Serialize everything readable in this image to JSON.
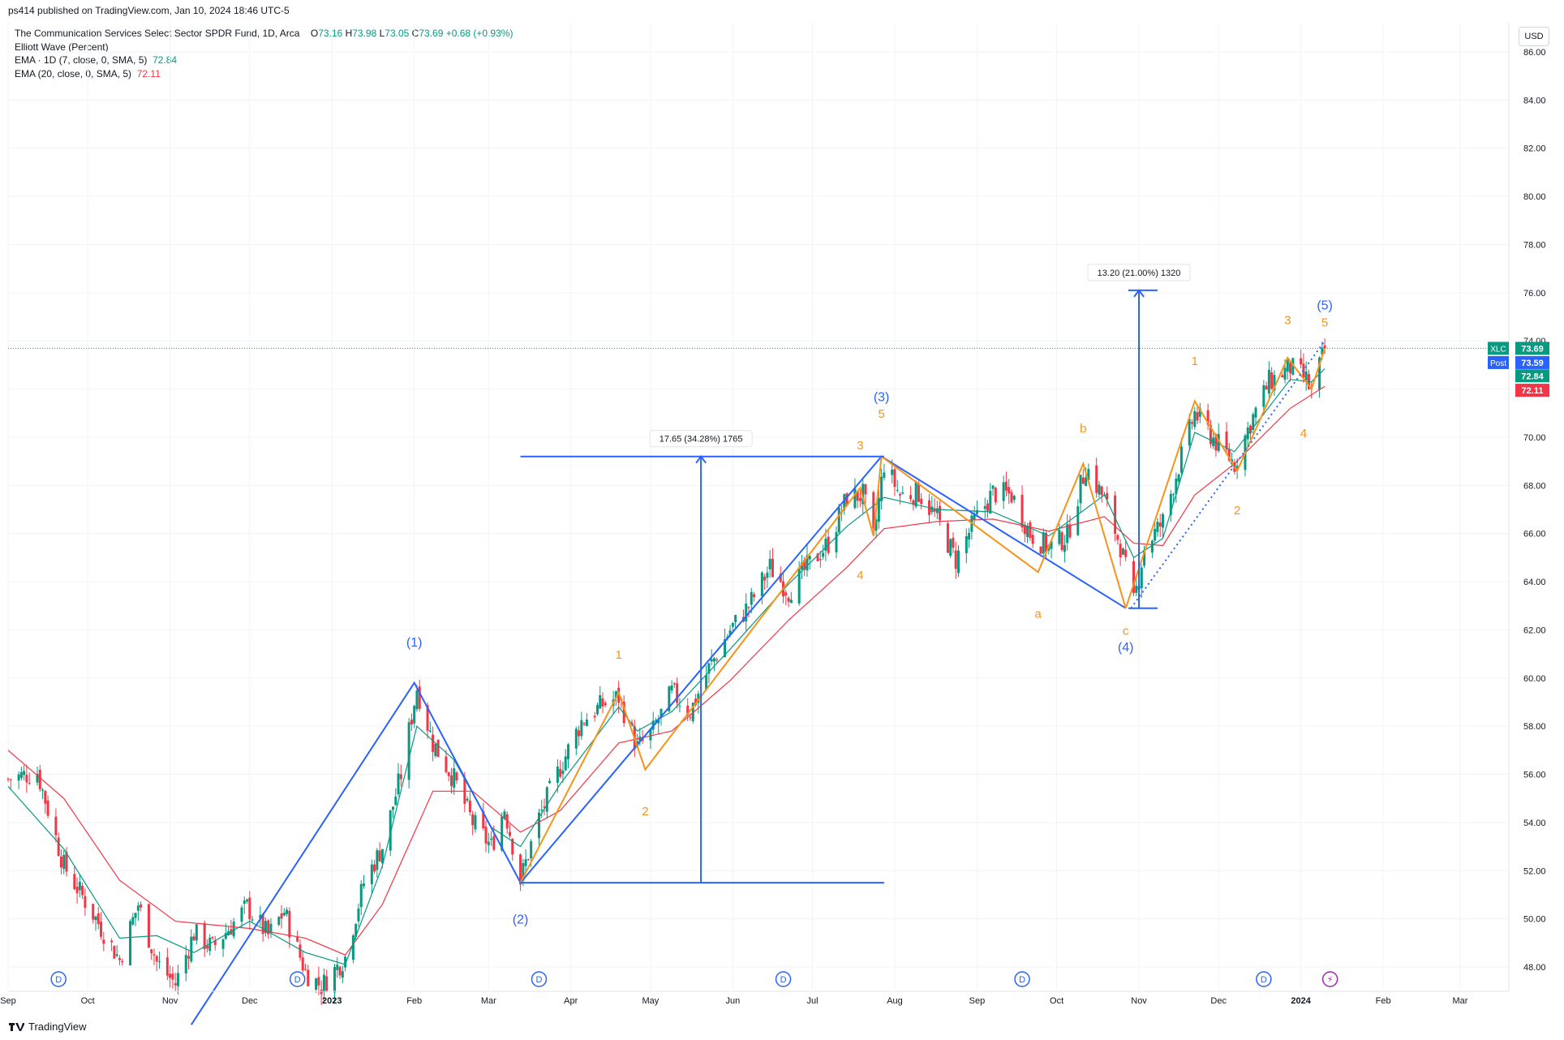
{
  "header": {
    "publisher": "ps414 published on TradingView.com, Jan 10, 2024 18:46 UTC-5"
  },
  "legend": {
    "symbol_line": "The Communication Services Select Sector SPDR Fund, 1D, Arca",
    "o_label": "O",
    "o": "73.16",
    "h_label": "H",
    "h": "73.98",
    "l_label": "L",
    "l": "73.05",
    "c_label": "C",
    "c": "73.69",
    "change": "+0.68 (+0.93%)",
    "indicator1": "Elliott Wave (Percent)",
    "ema_fast_label": "EMA · 1D (7, close, 0, SMA, 5)",
    "ema_fast_value": "72.84",
    "ema_slow_label": "EMA (20, close, 0, SMA, 5)",
    "ema_slow_value": "72.11"
  },
  "currency": "USD",
  "footer": {
    "brand": "TradingView"
  },
  "colors": {
    "up": "#089981",
    "down": "#f23645",
    "ema_fast": "#089981",
    "ema_slow": "#f23645",
    "primary_wave": "#2962ff",
    "minor_wave": "#f7931a",
    "grid": "#f0f3fa"
  },
  "chart_data": {
    "type": "candlestick",
    "title": "The Communication Services Select Sector SPDR Fund, 1D, Arca",
    "ylim": [
      46.5,
      86.5
    ],
    "y_ticks": [
      "48.00",
      "50.00",
      "52.00",
      "54.00",
      "56.00",
      "58.00",
      "60.00",
      "62.00",
      "64.00",
      "66.00",
      "68.00",
      "70.00",
      "72.00",
      "74.00",
      "76.00",
      "78.00",
      "80.00",
      "82.00",
      "84.00",
      "86.00"
    ],
    "x_ticks": [
      "Sep",
      "Oct",
      "Nov",
      "Dec",
      "2023",
      "Feb",
      "Mar",
      "Apr",
      "May",
      "Jun",
      "Jul",
      "Aug",
      "Sep",
      "Oct",
      "Nov",
      "Dec",
      "2024",
      "Feb",
      "Mar"
    ],
    "x_tick_dates": [
      "2022-09-01",
      "2022-10-01",
      "2022-11-01",
      "2022-12-01",
      "2023-01-01",
      "2023-02-01",
      "2023-03-01",
      "2023-04-01",
      "2023-05-01",
      "2023-06-01",
      "2023-07-01",
      "2023-08-01",
      "2023-09-01",
      "2023-10-01",
      "2023-11-01",
      "2023-12-01",
      "2024-01-01",
      "2024-02-01",
      "2024-03-01"
    ],
    "price_path": [
      [
        "2022-09-01",
        55.8
      ],
      [
        "2022-09-12",
        56.1
      ],
      [
        "2022-09-22",
        52.2
      ],
      [
        "2022-10-03",
        50.2
      ],
      [
        "2022-10-13",
        48.3
      ],
      [
        "2022-10-20",
        50.6
      ],
      [
        "2022-10-27",
        48.2
      ],
      [
        "2022-11-03",
        47.3
      ],
      [
        "2022-11-10",
        49.4
      ],
      [
        "2022-11-17",
        48.8
      ],
      [
        "2022-11-30",
        50.5
      ],
      [
        "2022-12-08",
        49.3
      ],
      [
        "2022-12-14",
        50.3
      ],
      [
        "2022-12-22",
        47.8
      ],
      [
        "2022-12-28",
        47.2
      ],
      [
        "2023-01-06",
        48.4
      ],
      [
        "2023-01-13",
        51.5
      ],
      [
        "2023-01-20",
        53.0
      ],
      [
        "2023-01-27",
        56.0
      ],
      [
        "2023-02-02",
        59.6
      ],
      [
        "2023-02-08",
        57.3
      ],
      [
        "2023-02-16",
        55.8
      ],
      [
        "2023-02-23",
        54.0
      ],
      [
        "2023-03-02",
        53.0
      ],
      [
        "2023-03-07",
        54.6
      ],
      [
        "2023-03-13",
        51.6
      ],
      [
        "2023-03-20",
        54.2
      ],
      [
        "2023-03-28",
        56.3
      ],
      [
        "2023-04-05",
        58.2
      ],
      [
        "2023-04-13",
        58.9
      ],
      [
        "2023-04-19",
        59.2
      ],
      [
        "2023-04-26",
        57.1
      ],
      [
        "2023-05-02",
        57.8
      ],
      [
        "2023-05-09",
        59.4
      ],
      [
        "2023-05-16",
        58.6
      ],
      [
        "2023-05-23",
        60.4
      ],
      [
        "2023-05-31",
        62.0
      ],
      [
        "2023-06-07",
        63.0
      ],
      [
        "2023-06-15",
        64.6
      ],
      [
        "2023-06-22",
        63.6
      ],
      [
        "2023-06-29",
        64.6
      ],
      [
        "2023-07-07",
        65.6
      ],
      [
        "2023-07-14",
        67.5
      ],
      [
        "2023-07-20",
        67.6
      ],
      [
        "2023-07-24",
        65.8
      ],
      [
        "2023-07-28",
        68.9
      ],
      [
        "2023-08-03",
        67.6
      ],
      [
        "2023-08-10",
        67.7
      ],
      [
        "2023-08-17",
        66.6
      ],
      [
        "2023-08-24",
        64.9
      ],
      [
        "2023-08-31",
        66.5
      ],
      [
        "2023-09-07",
        67.7
      ],
      [
        "2023-09-14",
        67.6
      ],
      [
        "2023-09-21",
        66.0
      ],
      [
        "2023-09-28",
        65.4
      ],
      [
        "2023-10-05",
        65.9
      ],
      [
        "2023-10-12",
        68.8
      ],
      [
        "2023-10-19",
        67.4
      ],
      [
        "2023-10-25",
        65.5
      ],
      [
        "2023-10-30",
        63.1
      ],
      [
        "2023-11-03",
        65.4
      ],
      [
        "2023-11-10",
        66.5
      ],
      [
        "2023-11-17",
        69.2
      ],
      [
        "2023-11-22",
        71.0
      ],
      [
        "2023-11-30",
        69.8
      ],
      [
        "2023-12-07",
        68.9
      ],
      [
        "2023-12-13",
        70.6
      ],
      [
        "2023-12-20",
        72.3
      ],
      [
        "2023-12-28",
        72.9
      ],
      [
        "2024-01-03",
        72.4
      ],
      [
        "2024-01-05",
        71.8
      ],
      [
        "2024-01-10",
        73.69
      ]
    ],
    "ema_fast_path": [
      [
        "2022-09-01",
        55.5
      ],
      [
        "2022-09-22",
        52.9
      ],
      [
        "2022-10-13",
        49.2
      ],
      [
        "2022-10-27",
        49.3
      ],
      [
        "2022-11-10",
        48.6
      ],
      [
        "2022-12-01",
        49.9
      ],
      [
        "2022-12-22",
        48.6
      ],
      [
        "2023-01-06",
        48.1
      ],
      [
        "2023-01-20",
        52.2
      ],
      [
        "2023-02-02",
        58.0
      ],
      [
        "2023-02-16",
        56.6
      ],
      [
        "2023-03-02",
        53.8
      ],
      [
        "2023-03-13",
        53.0
      ],
      [
        "2023-03-28",
        55.6
      ],
      [
        "2023-04-19",
        58.8
      ],
      [
        "2023-04-26",
        57.8
      ],
      [
        "2023-05-09",
        58.6
      ],
      [
        "2023-05-31",
        61.2
      ],
      [
        "2023-06-22",
        63.9
      ],
      [
        "2023-07-14",
        66.3
      ],
      [
        "2023-07-28",
        67.5
      ],
      [
        "2023-08-17",
        67.0
      ],
      [
        "2023-09-07",
        66.9
      ],
      [
        "2023-09-28",
        65.9
      ],
      [
        "2023-10-19",
        67.6
      ],
      [
        "2023-10-30",
        65.0
      ],
      [
        "2023-11-10",
        65.8
      ],
      [
        "2023-11-22",
        70.2
      ],
      [
        "2023-12-07",
        69.4
      ],
      [
        "2023-12-28",
        72.4
      ],
      [
        "2024-01-05",
        72.3
      ],
      [
        "2024-01-10",
        72.84
      ]
    ],
    "ema_slow_path": [
      [
        "2022-09-01",
        57.0
      ],
      [
        "2022-09-22",
        55.0
      ],
      [
        "2022-10-13",
        51.6
      ],
      [
        "2022-11-03",
        49.9
      ],
      [
        "2022-12-01",
        49.6
      ],
      [
        "2022-12-22",
        49.2
      ],
      [
        "2023-01-06",
        48.5
      ],
      [
        "2023-01-20",
        50.6
      ],
      [
        "2023-02-08",
        55.3
      ],
      [
        "2023-02-23",
        55.3
      ],
      [
        "2023-03-13",
        53.6
      ],
      [
        "2023-03-28",
        54.5
      ],
      [
        "2023-04-19",
        57.3
      ],
      [
        "2023-05-09",
        57.8
      ],
      [
        "2023-05-31",
        59.9
      ],
      [
        "2023-06-22",
        62.4
      ],
      [
        "2023-07-14",
        64.6
      ],
      [
        "2023-07-28",
        66.2
      ],
      [
        "2023-08-17",
        66.5
      ],
      [
        "2023-09-07",
        66.6
      ],
      [
        "2023-09-28",
        66.1
      ],
      [
        "2023-10-19",
        66.7
      ],
      [
        "2023-10-30",
        65.6
      ],
      [
        "2023-11-10",
        65.5
      ],
      [
        "2023-11-22",
        67.6
      ],
      [
        "2023-12-07",
        68.9
      ],
      [
        "2023-12-28",
        71.2
      ],
      [
        "2024-01-10",
        72.11
      ]
    ],
    "last_values": [
      {
        "tag": "XLC",
        "value": "73.69",
        "color": "#089981"
      },
      {
        "tag": "Post",
        "value": "73.59",
        "color": "#2962ff"
      },
      {
        "tag": "",
        "value": "72.84",
        "color": "#089981"
      },
      {
        "tag": "",
        "value": "72.11",
        "color": "#f23645"
      }
    ],
    "last_price": 73.69,
    "primary_wave": {
      "points": [
        [
          "2022-11-09",
          45.6
        ],
        [
          "2023-02-01",
          59.8
        ],
        [
          "2023-03-13",
          51.5
        ],
        [
          "2023-07-27",
          69.2
        ],
        [
          "2023-10-27",
          62.9
        ]
      ],
      "labels": [
        {
          "text": "(1)",
          "date": "2023-02-01",
          "price": 61.3
        },
        {
          "text": "(2)",
          "date": "2023-03-13",
          "price": 49.8
        },
        {
          "text": "(3)",
          "date": "2023-07-27",
          "price": 71.5
        },
        {
          "text": "(4)",
          "date": "2023-10-27",
          "price": 61.1
        },
        {
          "text": "(5)",
          "date": "2024-01-10",
          "price": 75.3
        }
      ]
    },
    "minor_wave_1": {
      "points": [
        [
          "2023-03-13",
          51.5
        ],
        [
          "2023-04-19",
          59.4
        ],
        [
          "2023-04-29",
          56.2
        ],
        [
          "2023-07-19",
          67.9
        ],
        [
          "2023-07-24",
          65.9
        ],
        [
          "2023-07-27",
          69.2
        ]
      ],
      "labels": [
        {
          "text": "1",
          "date": "2023-04-19",
          "price": 60.8
        },
        {
          "text": "2",
          "date": "2023-04-29",
          "price": 54.3
        },
        {
          "text": "3",
          "date": "2023-07-19",
          "price": 69.5
        },
        {
          "text": "4",
          "date": "2023-07-19",
          "price": 64.1
        },
        {
          "text": "5",
          "date": "2023-07-27",
          "price": 70.8
        }
      ]
    },
    "minor_wave_2": {
      "points": [
        [
          "2023-07-27",
          69.2
        ],
        [
          "2023-09-24",
          64.4
        ],
        [
          "2023-10-11",
          68.9
        ],
        [
          "2023-10-27",
          62.9
        ]
      ],
      "labels": [
        {
          "text": "a",
          "date": "2023-09-24",
          "price": 62.5
        },
        {
          "text": "b",
          "date": "2023-10-11",
          "price": 70.2
        },
        {
          "text": "c",
          "date": "2023-10-27",
          "price": 61.8
        }
      ]
    },
    "minor_wave_3": {
      "points": [
        [
          "2023-10-27",
          62.9
        ],
        [
          "2023-11-22",
          71.5
        ],
        [
          "2023-12-08",
          68.6
        ],
        [
          "2023-12-27",
          73.3
        ],
        [
          "2024-01-05",
          72.0
        ],
        [
          "2024-01-10",
          73.69
        ]
      ],
      "labels": [
        {
          "text": "1",
          "date": "2023-11-22",
          "price": 73.0
        },
        {
          "text": "2",
          "date": "2023-12-08",
          "price": 66.8
        },
        {
          "text": "3",
          "date": "2023-12-27",
          "price": 74.7
        },
        {
          "text": "4",
          "date": "2024-01-02",
          "price": 70.0
        },
        {
          "text": "5",
          "date": "2024-01-10",
          "price": 74.6
        }
      ]
    },
    "measure1": {
      "text": "17.65 (34.28%) 1765",
      "date": "2023-05-20",
      "from": 51.5,
      "to": 69.2,
      "hline_low": [
        "2023-03-13",
        "2023-07-28",
        51.5
      ],
      "hline_high": [
        "2023-03-13",
        "2023-07-28",
        69.2
      ]
    },
    "measure2": {
      "text": "13.20 (21.00%) 1320",
      "date": "2023-11-01",
      "from": 62.9,
      "to": 76.1,
      "hline_low": [
        "2023-10-28",
        "2023-11-08",
        62.9
      ],
      "hline_high": [
        "2023-10-28",
        "2023-11-08",
        76.1
      ]
    },
    "trendline": [
      [
        "2023-10-29",
        62.9
      ],
      [
        "2024-01-10",
        74.0
      ]
    ],
    "dividend_markers": [
      "2022-09-20",
      "2022-12-19",
      "2023-03-20",
      "2023-06-20",
      "2023-09-18",
      "2023-12-18"
    ],
    "dividend_letter": "D",
    "event_marker": "2024-01-12",
    "event_glyph": "⚡"
  }
}
